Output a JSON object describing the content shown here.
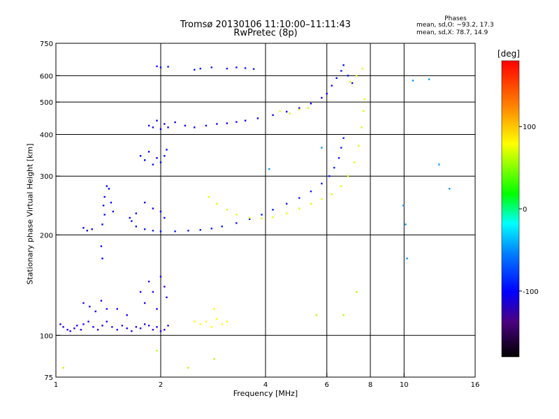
{
  "chart_data": {
    "type": "scatter",
    "title": "Tromsø 20130106 11:10:00–11:11:43",
    "subtitle": "RwPretec (8p)",
    "xlabel": "Frequency [MHz]",
    "ylabel": "Stationary phase Virtual Height [km]",
    "x_scale": "log",
    "y_scale": "log",
    "xlim": [
      1,
      16
    ],
    "ylim": [
      75,
      750
    ],
    "x_ticks": [
      1,
      2,
      4,
      6,
      8,
      10,
      16
    ],
    "y_ticks": [
      75,
      100,
      200,
      300,
      400,
      500,
      600,
      750
    ],
    "x_gridlines": [
      2,
      4,
      6,
      8,
      10
    ],
    "y_gridlines": [
      100,
      200,
      300,
      400,
      500,
      600
    ],
    "grid": true,
    "phases_legend": {
      "title": "Phases",
      "o_line": "mean, sd,O: −93.2, 17.3",
      "x_line": "mean, sd,X:  78.7, 14.9"
    },
    "colorbar": {
      "unit": "[deg]",
      "ticks": [
        100,
        0,
        -100
      ],
      "range": [
        -180,
        180
      ]
    },
    "series": [
      {
        "points": [
          [
            1.03,
            108
          ],
          [
            1.05,
            106
          ],
          [
            1.08,
            104
          ],
          [
            1.1,
            103
          ],
          [
            1.13,
            105
          ],
          [
            1.15,
            107
          ],
          [
            1.18,
            104
          ],
          [
            1.2,
            108
          ],
          [
            1.24,
            110
          ],
          [
            1.28,
            106
          ],
          [
            1.32,
            104
          ],
          [
            1.36,
            107
          ],
          [
            1.4,
            110
          ],
          [
            1.45,
            106
          ],
          [
            1.5,
            104
          ],
          [
            1.55,
            107
          ],
          [
            1.6,
            105
          ],
          [
            1.65,
            103
          ],
          [
            1.7,
            106
          ],
          [
            1.75,
            105
          ],
          [
            1.8,
            108
          ],
          [
            1.85,
            107
          ],
          [
            1.9,
            104
          ],
          [
            1.95,
            106
          ],
          [
            2.0,
            103
          ],
          [
            2.05,
            104
          ],
          [
            2.1,
            107
          ],
          [
            1.2,
            125
          ],
          [
            1.25,
            122
          ],
          [
            1.3,
            118
          ],
          [
            1.35,
            127
          ],
          [
            1.4,
            120
          ],
          [
            1.5,
            120
          ],
          [
            1.6,
            115
          ],
          [
            1.75,
            135
          ],
          [
            1.8,
            125
          ],
          [
            1.85,
            145
          ],
          [
            1.9,
            135
          ],
          [
            1.95,
            120
          ],
          [
            2.0,
            150
          ],
          [
            2.05,
            140
          ],
          [
            2.08,
            130
          ]
        ],
        "phase": -110
      },
      {
        "points": [
          [
            1.35,
            185
          ],
          [
            1.36,
            215
          ],
          [
            1.37,
            245
          ],
          [
            1.38,
            260
          ],
          [
            1.4,
            280
          ],
          [
            1.42,
            275
          ],
          [
            1.44,
            250
          ],
          [
            1.46,
            235
          ],
          [
            1.38,
            230
          ],
          [
            1.36,
            170
          ]
        ],
        "phase": -100
      },
      {
        "points": [
          [
            1.2,
            210
          ],
          [
            1.23,
            206
          ],
          [
            1.27,
            208
          ],
          [
            1.63,
            225
          ],
          [
            1.7,
            232
          ],
          [
            1.8,
            250
          ],
          [
            1.9,
            240
          ],
          [
            2.0,
            235
          ],
          [
            2.05,
            225
          ]
        ],
        "phase": -105
      },
      {
        "points": [
          [
            1.75,
            345
          ],
          [
            1.8,
            335
          ],
          [
            1.85,
            355
          ],
          [
            1.9,
            325
          ],
          [
            1.95,
            340
          ],
          [
            2.0,
            330
          ],
          [
            2.05,
            345
          ],
          [
            2.08,
            360
          ]
        ],
        "phase": -100
      },
      {
        "points": [
          [
            1.65,
            220
          ],
          [
            1.7,
            212
          ],
          [
            1.8,
            208
          ],
          [
            1.9,
            206
          ],
          [
            2.0,
            205
          ],
          [
            2.2,
            205
          ],
          [
            2.4,
            206
          ],
          [
            2.6,
            207
          ],
          [
            2.8,
            209
          ],
          [
            3.0,
            212
          ],
          [
            3.3,
            217
          ],
          [
            3.6,
            223
          ],
          [
            3.9,
            230
          ],
          [
            4.2,
            238
          ],
          [
            4.6,
            248
          ],
          [
            5.0,
            258
          ],
          [
            5.4,
            270
          ],
          [
            5.8,
            285
          ],
          [
            6.1,
            300
          ],
          [
            6.3,
            318
          ],
          [
            6.5,
            340
          ],
          [
            6.6,
            365
          ],
          [
            6.7,
            390
          ]
        ],
        "phase": -95
      },
      {
        "points": [
          [
            2.75,
            260
          ],
          [
            2.9,
            248
          ],
          [
            3.1,
            238
          ],
          [
            3.3,
            230
          ],
          [
            3.6,
            225
          ],
          [
            3.9,
            224
          ],
          [
            4.2,
            226
          ],
          [
            4.6,
            232
          ],
          [
            5.0,
            240
          ],
          [
            5.4,
            248
          ],
          [
            5.8,
            256
          ],
          [
            6.2,
            265
          ],
          [
            6.6,
            280
          ],
          [
            6.9,
            300
          ],
          [
            7.2,
            330
          ],
          [
            7.4,
            370
          ],
          [
            7.55,
            420
          ],
          [
            7.65,
            470
          ],
          [
            7.7,
            510
          ]
        ],
        "phase": 100
      },
      {
        "points": [
          [
            1.85,
            425
          ],
          [
            1.9,
            420
          ],
          [
            1.95,
            440
          ],
          [
            2.0,
            415
          ],
          [
            2.05,
            430
          ],
          [
            2.1,
            420
          ],
          [
            2.2,
            435
          ],
          [
            2.35,
            425
          ],
          [
            2.5,
            420
          ],
          [
            2.7,
            425
          ],
          [
            2.9,
            430
          ],
          [
            3.1,
            432
          ],
          [
            3.3,
            436
          ],
          [
            3.5,
            440
          ],
          [
            3.8,
            447
          ],
          [
            4.2,
            457
          ],
          [
            4.6,
            468
          ],
          [
            5.0,
            480
          ],
          [
            5.4,
            495
          ],
          [
            5.8,
            515
          ],
          [
            6.0,
            530
          ]
        ],
        "phase": -105
      },
      {
        "points": [
          [
            1.95,
            640
          ],
          [
            2.0,
            635
          ],
          [
            2.1,
            638
          ],
          [
            2.5,
            625
          ],
          [
            2.6,
            630
          ],
          [
            2.8,
            635
          ],
          [
            3.1,
            630
          ],
          [
            3.3,
            635
          ],
          [
            3.5,
            632
          ],
          [
            3.7,
            628
          ]
        ],
        "phase": -95
      },
      {
        "points": [
          [
            6.2,
            560
          ],
          [
            6.4,
            590
          ],
          [
            6.6,
            620
          ],
          [
            6.7,
            645
          ],
          [
            6.9,
            600
          ],
          [
            7.1,
            570
          ]
        ],
        "phase": -100
      },
      {
        "points": [
          [
            4.4,
            470
          ],
          [
            4.7,
            462
          ],
          [
            5.0,
            475
          ],
          [
            5.3,
            480
          ],
          [
            7.0,
            575
          ],
          [
            7.3,
            600
          ],
          [
            7.6,
            630
          ]
        ],
        "phase": 100
      },
      {
        "points": [
          [
            2.5,
            110
          ],
          [
            2.6,
            108
          ],
          [
            2.7,
            110
          ],
          [
            2.8,
            106
          ],
          [
            2.9,
            112
          ],
          [
            3.0,
            108
          ],
          [
            3.1,
            110
          ],
          [
            2.85,
            120
          ]
        ],
        "phase": 110
      },
      {
        "points": [
          [
            10.6,
            580
          ],
          [
            11.8,
            585
          ],
          [
            12.6,
            325
          ],
          [
            13.5,
            275
          ],
          [
            9.95,
            245
          ],
          [
            10.1,
            215
          ],
          [
            10.2,
            170
          ],
          [
            4.1,
            315
          ],
          [
            5.8,
            365
          ]
        ],
        "phase": -60
      },
      {
        "points": [
          [
            1.05,
            80
          ],
          [
            1.95,
            90
          ],
          [
            2.4,
            80
          ],
          [
            5.6,
            115
          ],
          [
            6.7,
            115
          ],
          [
            7.3,
            135
          ],
          [
            2.85,
            85
          ]
        ],
        "phase": 90
      }
    ]
  }
}
